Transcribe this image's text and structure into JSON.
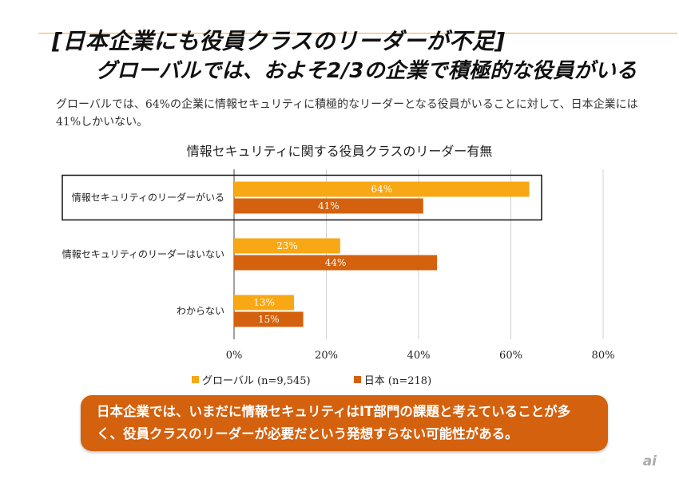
{
  "header": {
    "title_line1": "[日本企業にも役員クラスのリーダーが不足]",
    "title_line2": "グローバルでは、およそ2/3の企業で積極的な役員がいる"
  },
  "description": "グローバルでは、64%の企業に情報セキュリティに積極的なリーダーとなる役員がいることに対して、日本企業には41%しかいない。",
  "callout": {
    "text": "日本企業では、いまだに情報セキュリティはIT部門の課題と考えていることが多く、役員クラスのリーダーが必要だという発想すらない可能性がある。"
  },
  "logo": "ai",
  "colors": {
    "global": "#f7a814",
    "japan": "#d4610d",
    "callout": "#d4610d",
    "accent_line": "#f3a94a"
  },
  "chart_data": {
    "type": "bar",
    "orientation": "horizontal",
    "title": "情報セキュリティに関する役員クラスのリーダー有無",
    "categories": [
      "情報セキュリティのリーダーがいる",
      "情報セキュリティのリーダーはいない",
      "わからない"
    ],
    "series": [
      {
        "name": "グローバル (n=9,545)",
        "values": [
          64,
          23,
          13
        ],
        "labels": [
          "64%",
          "23%",
          "13%"
        ]
      },
      {
        "name": "日本 (n=218)",
        "values": [
          41,
          44,
          15
        ],
        "labels": [
          "41%",
          "44%",
          "15%"
        ]
      }
    ],
    "xlim": [
      0,
      80
    ],
    "xticks": [
      0,
      20,
      40,
      60,
      80
    ],
    "xtick_labels": [
      "0%",
      "20%",
      "40%",
      "60%",
      "80%"
    ],
    "grid": true,
    "highlighted_category": "情報セキュリティのリーダーがいる",
    "legend_position": "bottom"
  }
}
